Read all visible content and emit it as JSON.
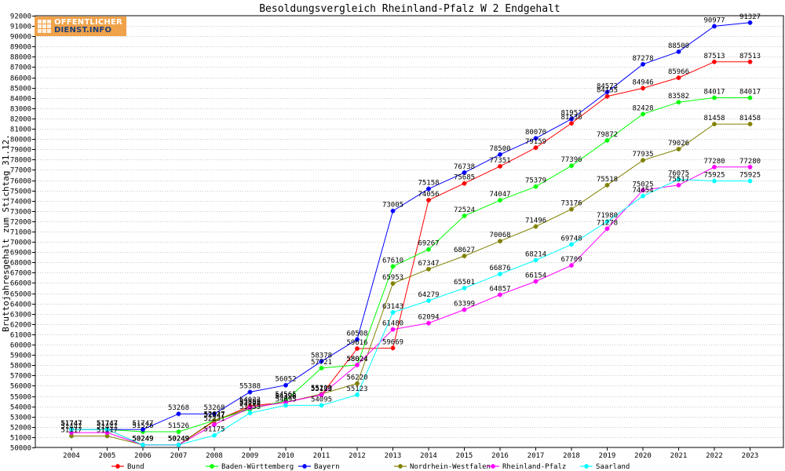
{
  "logo": {
    "line1": "OFFENTLICHER",
    "line2": "DIENST.INFO"
  },
  "colors": {
    "axis": "#000000",
    "grid": "#c8c8c8",
    "text": "#000000",
    "background": "#ffffff",
    "logo_bg": "#f0a24a",
    "logo_text_dark": "#1c3f7a"
  },
  "chart_data": {
    "type": "line",
    "title": "Besoldungsvergleich Rheinland-Pfalz W 2 Endgehalt",
    "xlabel": "",
    "ylabel": "Bruttojahresgehalt zum Stichtag 31.12.",
    "ylim": [
      50000,
      92000
    ],
    "ytick_step": 1000,
    "grid": "horizontal",
    "legend_position": "bottom",
    "categories": [
      "2004",
      "2005",
      "2006",
      "2007",
      "2008",
      "2009",
      "2010",
      "2011",
      "2012",
      "2013",
      "2014",
      "2015",
      "2016",
      "2017",
      "2018",
      "2019",
      "2020",
      "2021",
      "2022",
      "2023"
    ],
    "series": [
      {
        "name": "Bund",
        "color": "#ff0000",
        "values": [
          51747,
          51747,
          50249,
          50249,
          52547,
          54033,
          54396,
          55123,
          59616,
          59669,
          74056,
          75685,
          77351,
          79159,
          81536,
          84155,
          84946,
          85966,
          87513,
          87513
        ],
        "labels": [
          "51747",
          "51747",
          "50249",
          "50249",
          "52547",
          "54033",
          "54396",
          "55123",
          "59616",
          "59669",
          "74056",
          "75685",
          "77351",
          "79159",
          "81536",
          "84155",
          "84946",
          "85966",
          "87513",
          "87513"
        ]
      },
      {
        "name": "Baden-Württemberg",
        "color": "#00ff00",
        "values": [
          51747,
          51747,
          51526,
          51526,
          52627,
          53708,
          54565,
          57721,
          58024,
          67610,
          69267,
          72524,
          74047,
          75379,
          77396,
          79872,
          82428,
          83582,
          84017,
          84017
        ],
        "labels": [
          "51747",
          "51747",
          "51526",
          "51526",
          "52627",
          "53708",
          "54565",
          "57721",
          "58024",
          "67610",
          "69267",
          "72524",
          "74047",
          "75379",
          "77396",
          "79872",
          "82428",
          "83582",
          "84017",
          "84017"
        ]
      },
      {
        "name": "Bayern",
        "color": "#0000ff",
        "values": [
          51747,
          51747,
          51747,
          53268,
          53268,
          55388,
          56052,
          58378,
          60508,
          73005,
          75158,
          76738,
          78500,
          80070,
          81951,
          84573,
          87278,
          88500,
          90977,
          91327
        ],
        "labels": [
          "51747",
          "51747",
          "51747",
          "53268",
          "53268",
          "55388",
          "56052",
          "58378",
          "60508",
          "73005",
          "75158",
          "76738",
          "78500",
          "80070",
          "81951",
          "84573",
          "87278",
          "88500",
          "90977",
          "91327"
        ]
      },
      {
        "name": "Nordrhein-Westfalen",
        "color": "#808000",
        "values": [
          51117,
          51117,
          50249,
          50249,
          52627,
          53855,
          54396,
          55200,
          56220,
          65953,
          67347,
          68627,
          70068,
          71496,
          73176,
          75518,
          77935,
          79026,
          81458,
          81458
        ],
        "labels": [
          "51117",
          "51117",
          "50249",
          "50249",
          "52627",
          "53855",
          "54396",
          "55200",
          "56220",
          "65953",
          "67347",
          "68627",
          "70068",
          "71496",
          "73176",
          "75518",
          "77935",
          "79026",
          "81458",
          "81458"
        ]
      },
      {
        "name": "Rheinland-Pfalz",
        "color": "#ff00ff",
        "values": [
          51447,
          51447,
          50249,
          50249,
          52231,
          53855,
          54396,
          55123,
          58024,
          61480,
          62094,
          63399,
          64857,
          66154,
          67709,
          71278,
          75025,
          75517,
          77280,
          77280
        ],
        "labels": [
          "51447",
          "51447",
          "50249",
          "50249",
          "52231",
          "53855",
          "54396",
          "55123",
          "58024",
          "61480",
          "62094",
          "63399",
          "64857",
          "66154",
          "67709",
          "71278",
          "75025",
          "75517",
          "77280",
          "77280"
        ]
      },
      {
        "name": "Saarland",
        "color": "#00ffff",
        "values": [
          51747,
          51747,
          50249,
          50249,
          51175,
          53353,
          54095,
          54095,
          55123,
          63143,
          64279,
          65501,
          66876,
          68214,
          69748,
          71980,
          74454,
          76075,
          75925,
          75925
        ],
        "labels": [
          "51747",
          "51747",
          "50249",
          "50249",
          "51175",
          "53353",
          "54095",
          "54095",
          "55123",
          "63143",
          "64279",
          "65501",
          "66876",
          "68214",
          "69748",
          "71980",
          "74454",
          "76075",
          "75925",
          "75925"
        ]
      }
    ]
  }
}
